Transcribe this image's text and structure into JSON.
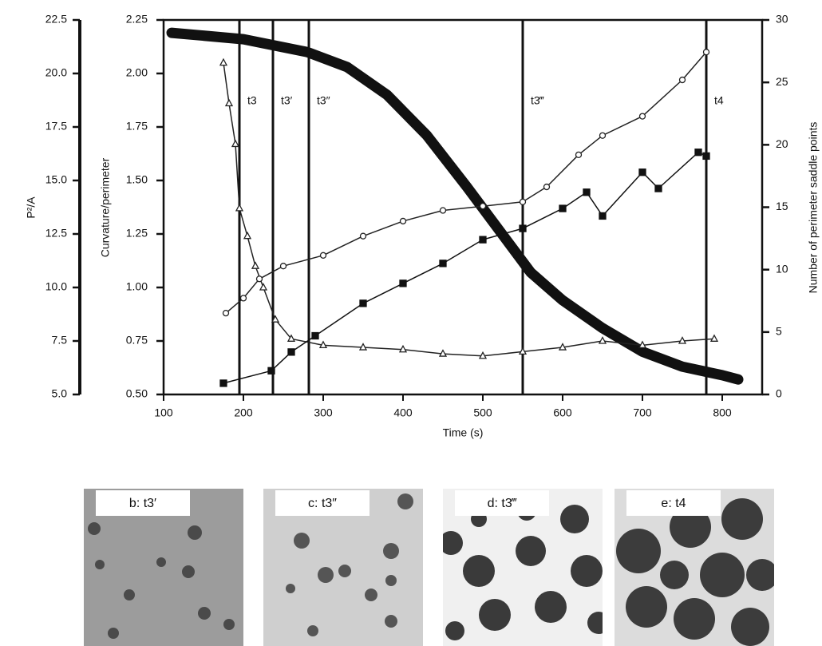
{
  "chart_data": {
    "type": "line",
    "xlabel": "Time (s)",
    "ylabel": "P²/A",
    "y3label": "Curvature/perimeter",
    "y2label": "Number of perimeter saddle points",
    "xlim": [
      100,
      850
    ],
    "xticks": [
      100,
      200,
      300,
      400,
      500,
      600,
      700,
      800
    ],
    "ylim": [
      5,
      22.5
    ],
    "yticks": [
      {
        "value": 5,
        "label": "5.0"
      },
      7.5,
      {
        "value": 10,
        "label": "10.0"
      },
      12.5,
      {
        "value": 15,
        "label": "15.0"
      },
      17.5,
      {
        "value": 20,
        "label": "20.0"
      },
      22.5
    ],
    "y3lim": [
      0.5,
      2.25
    ],
    "y3ticks": [
      {
        "value": 0.5,
        "label": "0.50"
      },
      0.75,
      {
        "value": 1,
        "label": "1.00"
      },
      1.25,
      {
        "value": 1.5,
        "label": "1.50"
      },
      1.75,
      {
        "value": 2,
        "label": "2.00"
      },
      2.25
    ],
    "y2lim": [
      0,
      30
    ],
    "y2ticks": [
      0,
      5,
      10,
      15,
      20,
      25,
      30
    ],
    "markers": [
      {
        "x": 195,
        "label": "t3"
      },
      {
        "x": 237,
        "label": "t3′"
      },
      {
        "x": 282,
        "label": "t3″"
      },
      {
        "x": 550,
        "label": "t3‴"
      },
      {
        "x": 780,
        "label": "t4"
      }
    ],
    "series": [
      {
        "color": "#111111",
        "marker": "none",
        "line_width": 13,
        "axis": "y",
        "x": [
          110,
          200,
          280,
          330,
          380,
          430,
          480,
          530,
          560,
          600,
          650,
          700,
          750,
          800,
          820
        ],
        "values": [
          21.9,
          21.6,
          21.0,
          20.3,
          19.0,
          17.1,
          14.7,
          12.2,
          10.7,
          9.4,
          8.1,
          7.0,
          6.3,
          5.9,
          5.7
        ]
      },
      {
        "color": "#222222",
        "marker": "triangle",
        "line_width": 1.5,
        "axis": "y",
        "x": [
          175,
          182,
          190,
          195,
          205,
          215,
          225,
          240,
          260,
          300,
          350,
          400,
          450,
          500,
          550,
          600,
          650,
          700,
          750,
          790
        ],
        "values": [
          20.5,
          18.6,
          16.7,
          13.7,
          12.4,
          11.0,
          10.0,
          8.5,
          7.6,
          7.3,
          7.2,
          7.1,
          6.9,
          6.8,
          7.0,
          7.2,
          7.5,
          7.3,
          7.5,
          7.6
        ]
      },
      {
        "color": "#222222",
        "marker": "circle",
        "line_width": 1.5,
        "axis": "y3",
        "x": [
          178,
          200,
          220,
          250,
          300,
          350,
          400,
          450,
          500,
          550,
          580,
          620,
          650,
          700,
          750,
          780
        ],
        "values": [
          0.88,
          0.95,
          1.04,
          1.1,
          1.15,
          1.24,
          1.31,
          1.36,
          1.38,
          1.4,
          1.47,
          1.62,
          1.71,
          1.8,
          1.97,
          2.1
        ]
      },
      {
        "color": "#111111",
        "marker": "square",
        "line_width": 1.5,
        "axis": "y2",
        "x": [
          175,
          235,
          260,
          290,
          350,
          400,
          450,
          500,
          550,
          600,
          630,
          650,
          700,
          720,
          770,
          780
        ],
        "values": [
          0.9,
          1.9,
          3.4,
          4.7,
          7.3,
          8.9,
          10.5,
          12.4,
          13.3,
          14.9,
          16.2,
          14.3,
          17.8,
          16.5,
          19.4,
          19.1
        ]
      }
    ]
  },
  "panels": [
    {
      "label": "b: t3′"
    },
    {
      "label": "c: t3″"
    },
    {
      "label": "d: t3‴"
    },
    {
      "label": "e: t4"
    }
  ]
}
